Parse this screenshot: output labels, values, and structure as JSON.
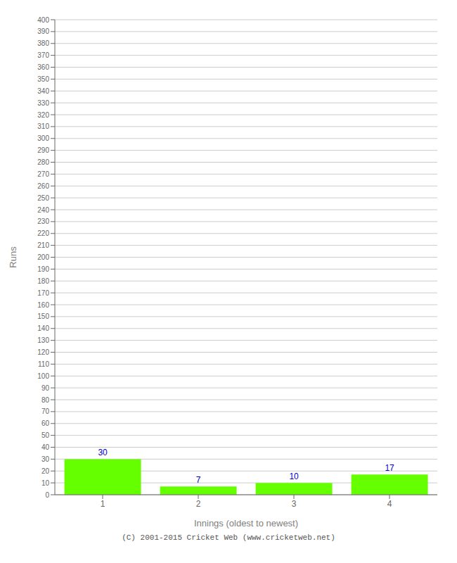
{
  "chart_data": {
    "type": "bar",
    "categories": [
      "1",
      "2",
      "3",
      "4"
    ],
    "values": [
      30,
      7,
      10,
      17
    ],
    "color": "#66ff00",
    "xlabel": "Innings (oldest to newest)",
    "ylabel": "Runs",
    "ylim": [
      0,
      400
    ],
    "yticks": [
      0,
      10,
      20,
      30,
      40,
      50,
      60,
      70,
      80,
      90,
      100,
      110,
      120,
      130,
      140,
      150,
      160,
      170,
      180,
      190,
      200,
      210,
      220,
      230,
      240,
      250,
      260,
      270,
      280,
      290,
      300,
      310,
      320,
      330,
      340,
      350,
      360,
      370,
      380,
      390,
      400
    ],
    "grid": true,
    "data_labels": true,
    "annotations": [
      "(C) 2001-2015 Cricket Web (www.cricketweb.net)"
    ]
  }
}
